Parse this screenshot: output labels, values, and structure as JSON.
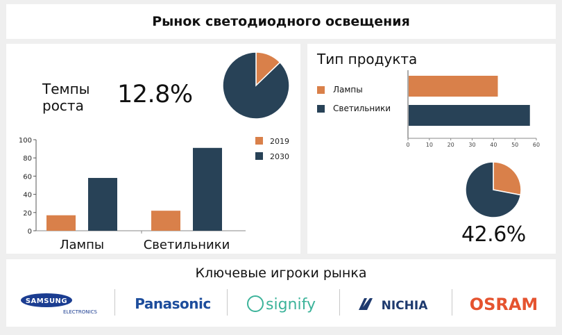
{
  "header": {
    "title": "Рынок светодиодного освещения"
  },
  "growth": {
    "label_line1": "Темпы",
    "label_line2": "роста",
    "value": "12.8%"
  },
  "product": {
    "title": "Тип продукта",
    "share_value": "42.6%"
  },
  "players": {
    "title": "Ключевые игроки рынка",
    "logos": [
      {
        "name": "SAMSUNG",
        "sub": "ELECTRONICS"
      },
      {
        "name": "Panasonic"
      },
      {
        "name": "signify"
      },
      {
        "name": "NICHIA"
      },
      {
        "name": "OSRAM"
      }
    ]
  },
  "colors": {
    "orange": "#d9804a",
    "navy": "#284257"
  },
  "chart_data": [
    {
      "type": "pie",
      "slices": [
        {
          "value": 12.8,
          "color": "#d9804a"
        },
        {
          "value": 87.2,
          "color": "#284257"
        }
      ]
    },
    {
      "type": "bar",
      "categories": [
        "Лампы",
        "Светильники"
      ],
      "series": [
        {
          "name": "2019",
          "color": "#d9804a",
          "values": [
            17,
            22
          ]
        },
        {
          "name": "2030",
          "color": "#284257",
          "values": [
            58,
            91
          ]
        }
      ],
      "yticks": [
        "0",
        "20",
        "40",
        "60",
        "80",
        "100"
      ],
      "ylim": [
        0,
        100
      ],
      "legend": "top-right"
    },
    {
      "type": "bar",
      "orientation": "horizontal",
      "categories": [
        "Лампы",
        "Светильники"
      ],
      "values": [
        42,
        57
      ],
      "colors": [
        "#d9804a",
        "#284257"
      ],
      "xticks": [
        "0",
        "10",
        "20",
        "30",
        "40",
        "50",
        "60"
      ],
      "xlim": [
        0,
        60
      ],
      "legend": "left"
    },
    {
      "type": "pie",
      "slices": [
        {
          "value": 28,
          "color": "#d9804a"
        },
        {
          "value": 72,
          "color": "#284257"
        }
      ]
    }
  ]
}
